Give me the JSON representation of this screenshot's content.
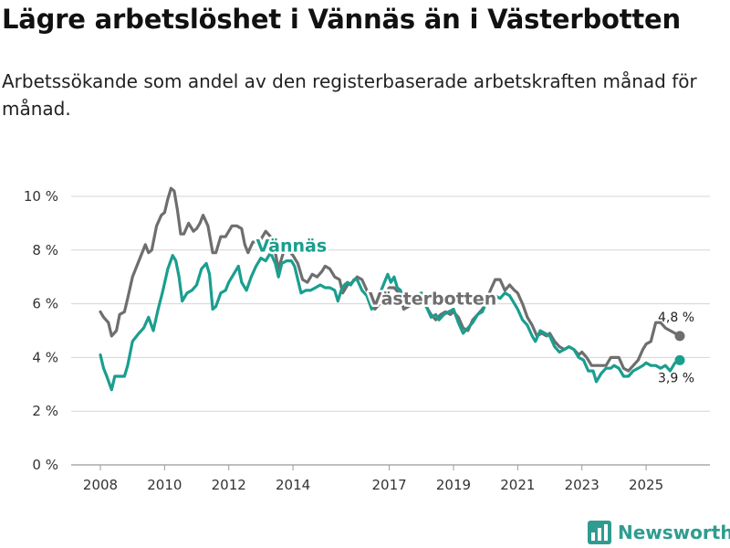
{
  "header": {
    "title": "Lägre arbetslöshet i Vännäs än i Västerbotten",
    "subtitle": "Arbetssökande som andel av den registerbaserade arbetskraften månad för månad."
  },
  "brand": {
    "name": "Newsworthy",
    "color": "#2f9c8f"
  },
  "chart_data": {
    "type": "line",
    "title": "Lägre arbetslöshet i Vännäs än i Västerbotten",
    "subtitle": "Arbetssökande som andel av den registerbaserade arbetskraften månad för månad.",
    "xlabel": "",
    "ylabel": "",
    "xlim": [
      2008,
      2026.5
    ],
    "ylim": [
      0,
      10
    ],
    "y_ticks": [
      0,
      2,
      4,
      6,
      8,
      10
    ],
    "y_tick_labels": [
      "0 %",
      "2 %",
      "4 %",
      "6 %",
      "8 %",
      "10 %"
    ],
    "x_ticks": [
      2008,
      2010,
      2012,
      2014,
      2017,
      2019,
      2021,
      2023,
      2025
    ],
    "x_tick_labels": [
      "2008",
      "2010",
      "2012",
      "2014",
      "2017",
      "2019",
      "2021",
      "2023",
      "2025"
    ],
    "grid": true,
    "series": [
      {
        "name": "Västerbotten",
        "color": "#6e6e6e",
        "end_label": "4,8 %",
        "points": [
          [
            2008.0,
            5.7
          ],
          [
            2008.1,
            5.5
          ],
          [
            2008.25,
            5.3
          ],
          [
            2008.35,
            4.8
          ],
          [
            2008.5,
            5.0
          ],
          [
            2008.6,
            5.6
          ],
          [
            2008.75,
            5.7
          ],
          [
            2008.85,
            6.2
          ],
          [
            2009.0,
            7.0
          ],
          [
            2009.2,
            7.6
          ],
          [
            2009.4,
            8.2
          ],
          [
            2009.5,
            7.9
          ],
          [
            2009.6,
            8.0
          ],
          [
            2009.75,
            8.9
          ],
          [
            2009.9,
            9.3
          ],
          [
            2010.0,
            9.4
          ],
          [
            2010.1,
            9.9
          ],
          [
            2010.2,
            10.3
          ],
          [
            2010.3,
            10.2
          ],
          [
            2010.4,
            9.5
          ],
          [
            2010.5,
            8.6
          ],
          [
            2010.6,
            8.6
          ],
          [
            2010.75,
            9.0
          ],
          [
            2010.9,
            8.7
          ],
          [
            2011.0,
            8.8
          ],
          [
            2011.1,
            9.0
          ],
          [
            2011.2,
            9.3
          ],
          [
            2011.35,
            8.9
          ],
          [
            2011.5,
            7.9
          ],
          [
            2011.6,
            7.9
          ],
          [
            2011.75,
            8.5
          ],
          [
            2011.9,
            8.5
          ],
          [
            2012.0,
            8.7
          ],
          [
            2012.1,
            8.9
          ],
          [
            2012.25,
            8.9
          ],
          [
            2012.4,
            8.8
          ],
          [
            2012.5,
            8.2
          ],
          [
            2012.6,
            7.9
          ],
          [
            2012.75,
            8.3
          ],
          [
            2012.9,
            8.3
          ],
          [
            2013.0,
            8.4
          ],
          [
            2013.15,
            8.7
          ],
          [
            2013.3,
            8.5
          ],
          [
            2013.45,
            7.9
          ],
          [
            2013.55,
            7.3
          ],
          [
            2013.7,
            7.9
          ],
          [
            2013.85,
            8.0
          ],
          [
            2014.0,
            7.8
          ],
          [
            2014.15,
            7.5
          ],
          [
            2014.3,
            6.9
          ],
          [
            2014.45,
            6.8
          ],
          [
            2014.6,
            7.1
          ],
          [
            2014.75,
            7.0
          ],
          [
            2014.9,
            7.2
          ],
          [
            2015.0,
            7.4
          ],
          [
            2015.15,
            7.3
          ],
          [
            2015.3,
            7.0
          ],
          [
            2015.45,
            6.9
          ],
          [
            2015.55,
            6.4
          ],
          [
            2015.7,
            6.7
          ],
          [
            2015.85,
            6.8
          ],
          [
            2016.0,
            7.0
          ],
          [
            2016.15,
            6.9
          ],
          [
            2016.3,
            6.5
          ],
          [
            2016.45,
            6.2
          ],
          [
            2016.55,
            5.8
          ],
          [
            2016.7,
            6.0
          ],
          [
            2016.85,
            6.3
          ],
          [
            2017.0,
            6.6
          ],
          [
            2017.15,
            6.6
          ],
          [
            2017.3,
            6.4
          ],
          [
            2017.45,
            5.8
          ],
          [
            2017.6,
            5.9
          ],
          [
            2017.75,
            6.0
          ],
          [
            2017.9,
            6.2
          ],
          [
            2018.0,
            6.1
          ],
          [
            2018.15,
            5.9
          ],
          [
            2018.3,
            5.6
          ],
          [
            2018.45,
            5.4
          ],
          [
            2018.6,
            5.6
          ],
          [
            2018.75,
            5.7
          ],
          [
            2018.9,
            5.6
          ],
          [
            2019.0,
            5.7
          ],
          [
            2019.15,
            5.5
          ],
          [
            2019.3,
            5.1
          ],
          [
            2019.45,
            5.0
          ],
          [
            2019.6,
            5.4
          ],
          [
            2019.75,
            5.6
          ],
          [
            2019.9,
            5.8
          ],
          [
            2020.0,
            6.0
          ],
          [
            2020.15,
            6.5
          ],
          [
            2020.3,
            6.9
          ],
          [
            2020.45,
            6.9
          ],
          [
            2020.6,
            6.5
          ],
          [
            2020.75,
            6.7
          ],
          [
            2020.9,
            6.5
          ],
          [
            2021.0,
            6.4
          ],
          [
            2021.15,
            6.0
          ],
          [
            2021.3,
            5.5
          ],
          [
            2021.45,
            5.2
          ],
          [
            2021.6,
            4.8
          ],
          [
            2021.75,
            4.9
          ],
          [
            2021.9,
            4.8
          ],
          [
            2022.0,
            4.9
          ],
          [
            2022.15,
            4.6
          ],
          [
            2022.3,
            4.4
          ],
          [
            2022.45,
            4.3
          ],
          [
            2022.6,
            4.4
          ],
          [
            2022.75,
            4.3
          ],
          [
            2022.9,
            4.1
          ],
          [
            2023.0,
            4.2
          ],
          [
            2023.15,
            4.0
          ],
          [
            2023.3,
            3.7
          ],
          [
            2023.45,
            3.7
          ],
          [
            2023.6,
            3.7
          ],
          [
            2023.75,
            3.7
          ],
          [
            2023.9,
            4.0
          ],
          [
            2024.0,
            4.0
          ],
          [
            2024.15,
            4.0
          ],
          [
            2024.3,
            3.6
          ],
          [
            2024.45,
            3.5
          ],
          [
            2024.6,
            3.7
          ],
          [
            2024.75,
            3.9
          ],
          [
            2024.9,
            4.3
          ],
          [
            2025.0,
            4.5
          ],
          [
            2025.15,
            4.6
          ],
          [
            2025.3,
            5.3
          ],
          [
            2025.45,
            5.3
          ],
          [
            2025.6,
            5.1
          ],
          [
            2025.75,
            5.0
          ],
          [
            2025.9,
            4.9
          ],
          [
            2026.05,
            4.8
          ]
        ]
      },
      {
        "name": "Vännäs",
        "color": "#1a9e8f",
        "end_label": "3,9 %",
        "points": [
          [
            2008.0,
            4.1
          ],
          [
            2008.1,
            3.6
          ],
          [
            2008.2,
            3.3
          ],
          [
            2008.35,
            2.8
          ],
          [
            2008.45,
            3.3
          ],
          [
            2008.6,
            3.3
          ],
          [
            2008.75,
            3.3
          ],
          [
            2008.85,
            3.7
          ],
          [
            2009.0,
            4.6
          ],
          [
            2009.2,
            4.9
          ],
          [
            2009.35,
            5.1
          ],
          [
            2009.5,
            5.5
          ],
          [
            2009.65,
            5.0
          ],
          [
            2009.8,
            5.8
          ],
          [
            2009.95,
            6.5
          ],
          [
            2010.1,
            7.3
          ],
          [
            2010.25,
            7.8
          ],
          [
            2010.35,
            7.6
          ],
          [
            2010.45,
            7.0
          ],
          [
            2010.55,
            6.1
          ],
          [
            2010.7,
            6.4
          ],
          [
            2010.85,
            6.5
          ],
          [
            2011.0,
            6.7
          ],
          [
            2011.15,
            7.3
          ],
          [
            2011.3,
            7.5
          ],
          [
            2011.4,
            7.1
          ],
          [
            2011.5,
            5.8
          ],
          [
            2011.6,
            5.9
          ],
          [
            2011.75,
            6.4
          ],
          [
            2011.9,
            6.5
          ],
          [
            2012.0,
            6.8
          ],
          [
            2012.15,
            7.1
          ],
          [
            2012.3,
            7.4
          ],
          [
            2012.4,
            6.8
          ],
          [
            2012.55,
            6.5
          ],
          [
            2012.7,
            7.0
          ],
          [
            2012.85,
            7.4
          ],
          [
            2013.0,
            7.7
          ],
          [
            2013.15,
            7.6
          ],
          [
            2013.3,
            7.9
          ],
          [
            2013.45,
            7.5
          ],
          [
            2013.55,
            7.0
          ],
          [
            2013.65,
            7.5
          ],
          [
            2013.8,
            7.6
          ],
          [
            2013.95,
            7.6
          ],
          [
            2014.05,
            7.4
          ],
          [
            2014.25,
            6.4
          ],
          [
            2014.4,
            6.5
          ],
          [
            2014.55,
            6.5
          ],
          [
            2014.7,
            6.6
          ],
          [
            2014.85,
            6.7
          ],
          [
            2015.0,
            6.6
          ],
          [
            2015.15,
            6.6
          ],
          [
            2015.3,
            6.5
          ],
          [
            2015.4,
            6.1
          ],
          [
            2015.5,
            6.5
          ],
          [
            2015.6,
            6.7
          ],
          [
            2015.7,
            6.8
          ],
          [
            2015.8,
            6.7
          ],
          [
            2015.9,
            6.9
          ],
          [
            2016.0,
            6.9
          ],
          [
            2016.15,
            6.5
          ],
          [
            2016.3,
            6.3
          ],
          [
            2016.45,
            5.8
          ],
          [
            2016.6,
            6.0
          ],
          [
            2016.75,
            6.5
          ],
          [
            2016.85,
            6.8
          ],
          [
            2016.95,
            7.1
          ],
          [
            2017.05,
            6.8
          ],
          [
            2017.15,
            7.0
          ],
          [
            2017.25,
            6.6
          ],
          [
            2017.35,
            6.5
          ],
          [
            2017.45,
            6.0
          ],
          [
            2017.6,
            6.1
          ],
          [
            2017.7,
            6.2
          ],
          [
            2017.85,
            6.3
          ],
          [
            2018.0,
            6.4
          ],
          [
            2018.15,
            5.9
          ],
          [
            2018.3,
            5.5
          ],
          [
            2018.45,
            5.6
          ],
          [
            2018.55,
            5.4
          ],
          [
            2018.7,
            5.6
          ],
          [
            2018.85,
            5.7
          ],
          [
            2019.0,
            5.8
          ],
          [
            2019.15,
            5.3
          ],
          [
            2019.3,
            4.9
          ],
          [
            2019.45,
            5.1
          ],
          [
            2019.6,
            5.3
          ],
          [
            2019.75,
            5.6
          ],
          [
            2019.9,
            5.7
          ],
          [
            2020.0,
            6.0
          ],
          [
            2020.15,
            6.2
          ],
          [
            2020.3,
            6.3
          ],
          [
            2020.45,
            6.2
          ],
          [
            2020.6,
            6.4
          ],
          [
            2020.75,
            6.3
          ],
          [
            2020.9,
            6.0
          ],
          [
            2021.0,
            5.8
          ],
          [
            2021.15,
            5.4
          ],
          [
            2021.3,
            5.2
          ],
          [
            2021.45,
            4.8
          ],
          [
            2021.55,
            4.6
          ],
          [
            2021.7,
            5.0
          ],
          [
            2021.85,
            4.9
          ],
          [
            2022.0,
            4.8
          ],
          [
            2022.15,
            4.4
          ],
          [
            2022.3,
            4.2
          ],
          [
            2022.45,
            4.3
          ],
          [
            2022.6,
            4.4
          ],
          [
            2022.75,
            4.3
          ],
          [
            2022.9,
            4.0
          ],
          [
            2023.05,
            3.9
          ],
          [
            2023.2,
            3.5
          ],
          [
            2023.35,
            3.5
          ],
          [
            2023.45,
            3.1
          ],
          [
            2023.6,
            3.4
          ],
          [
            2023.75,
            3.6
          ],
          [
            2023.9,
            3.6
          ],
          [
            2024.0,
            3.7
          ],
          [
            2024.15,
            3.6
          ],
          [
            2024.3,
            3.3
          ],
          [
            2024.45,
            3.3
          ],
          [
            2024.6,
            3.5
          ],
          [
            2024.75,
            3.6
          ],
          [
            2024.9,
            3.7
          ],
          [
            2025.0,
            3.8
          ],
          [
            2025.15,
            3.7
          ],
          [
            2025.3,
            3.7
          ],
          [
            2025.45,
            3.6
          ],
          [
            2025.6,
            3.7
          ],
          [
            2025.75,
            3.5
          ],
          [
            2025.9,
            3.8
          ],
          [
            2026.05,
            3.9
          ]
        ]
      }
    ],
    "annotations": [
      {
        "series": "Vännäs",
        "text": "Vännäs",
        "x": 2013.95,
        "y": 7.95
      },
      {
        "series": "Västerbotten",
        "text": "Västerbotten",
        "x": 2018.35,
        "y": 5.97
      }
    ]
  }
}
